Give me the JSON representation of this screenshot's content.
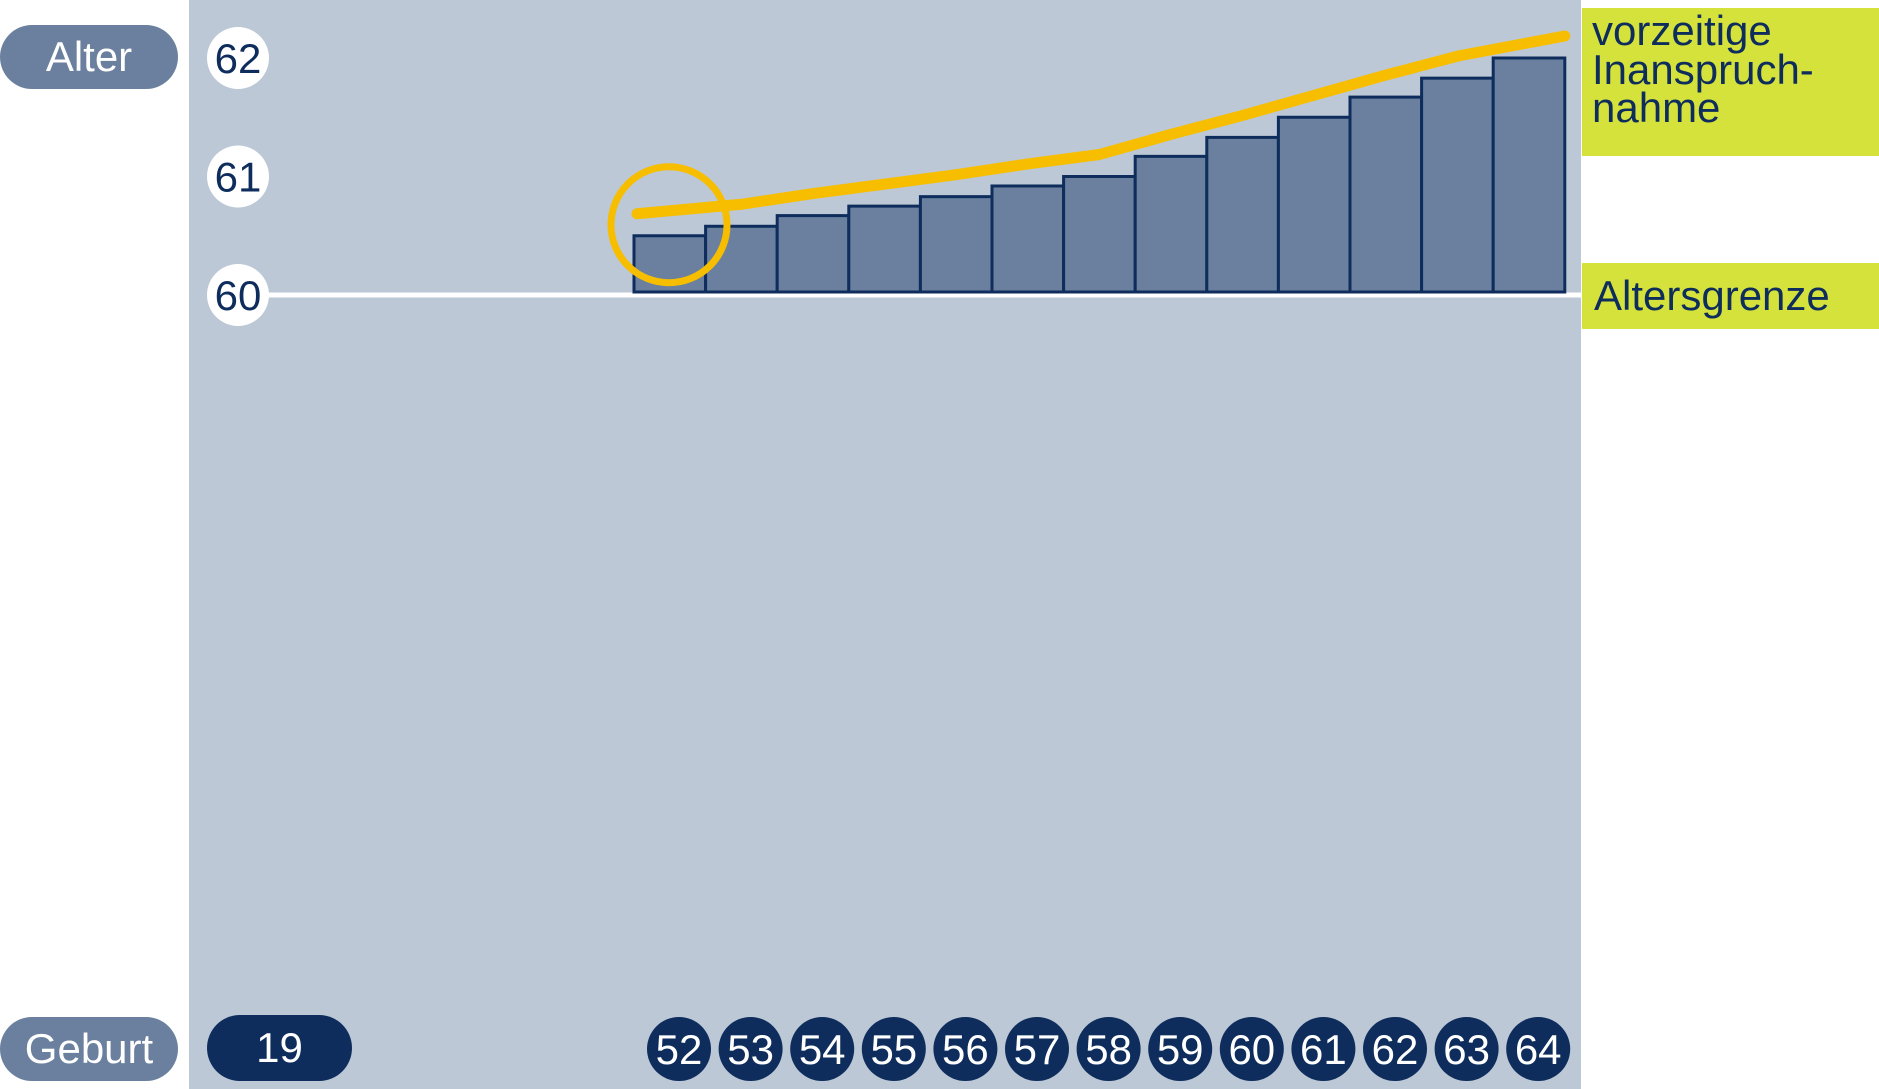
{
  "chart_data": {
    "type": "bar",
    "ylabel": "Alter",
    "xlabel": "Geburt",
    "x_prefix": "19",
    "y_ticks": [
      "60",
      "61",
      "62"
    ],
    "ylim": [
      60,
      62
    ],
    "categories": [
      "52",
      "53",
      "54",
      "55",
      "56",
      "57",
      "58",
      "59",
      "60",
      "61",
      "62",
      "63",
      "64"
    ],
    "values": [
      60.5,
      60.58,
      60.67,
      60.75,
      60.83,
      60.92,
      61.0,
      61.17,
      61.33,
      61.5,
      61.67,
      61.83,
      62.0
    ],
    "early_line": [
      60.5,
      60.58,
      60.67,
      60.75,
      60.83,
      60.92,
      61.0,
      61.17,
      61.33,
      61.5,
      61.67,
      61.83,
      62.0
    ],
    "reference_line": 60,
    "annotations": {
      "early_retirement": "vorzeitige Inanspruch- nahme",
      "age_limit": "Altersgrenze"
    },
    "highlight_category": "52",
    "colors": {
      "background": "#bcc8d6",
      "bar_fill": "#6a809e",
      "bar_stroke": "#0e2d5c",
      "line": "#f7be00",
      "label_box": "#d5e23c",
      "text_dark": "#0e2d5c"
    }
  }
}
